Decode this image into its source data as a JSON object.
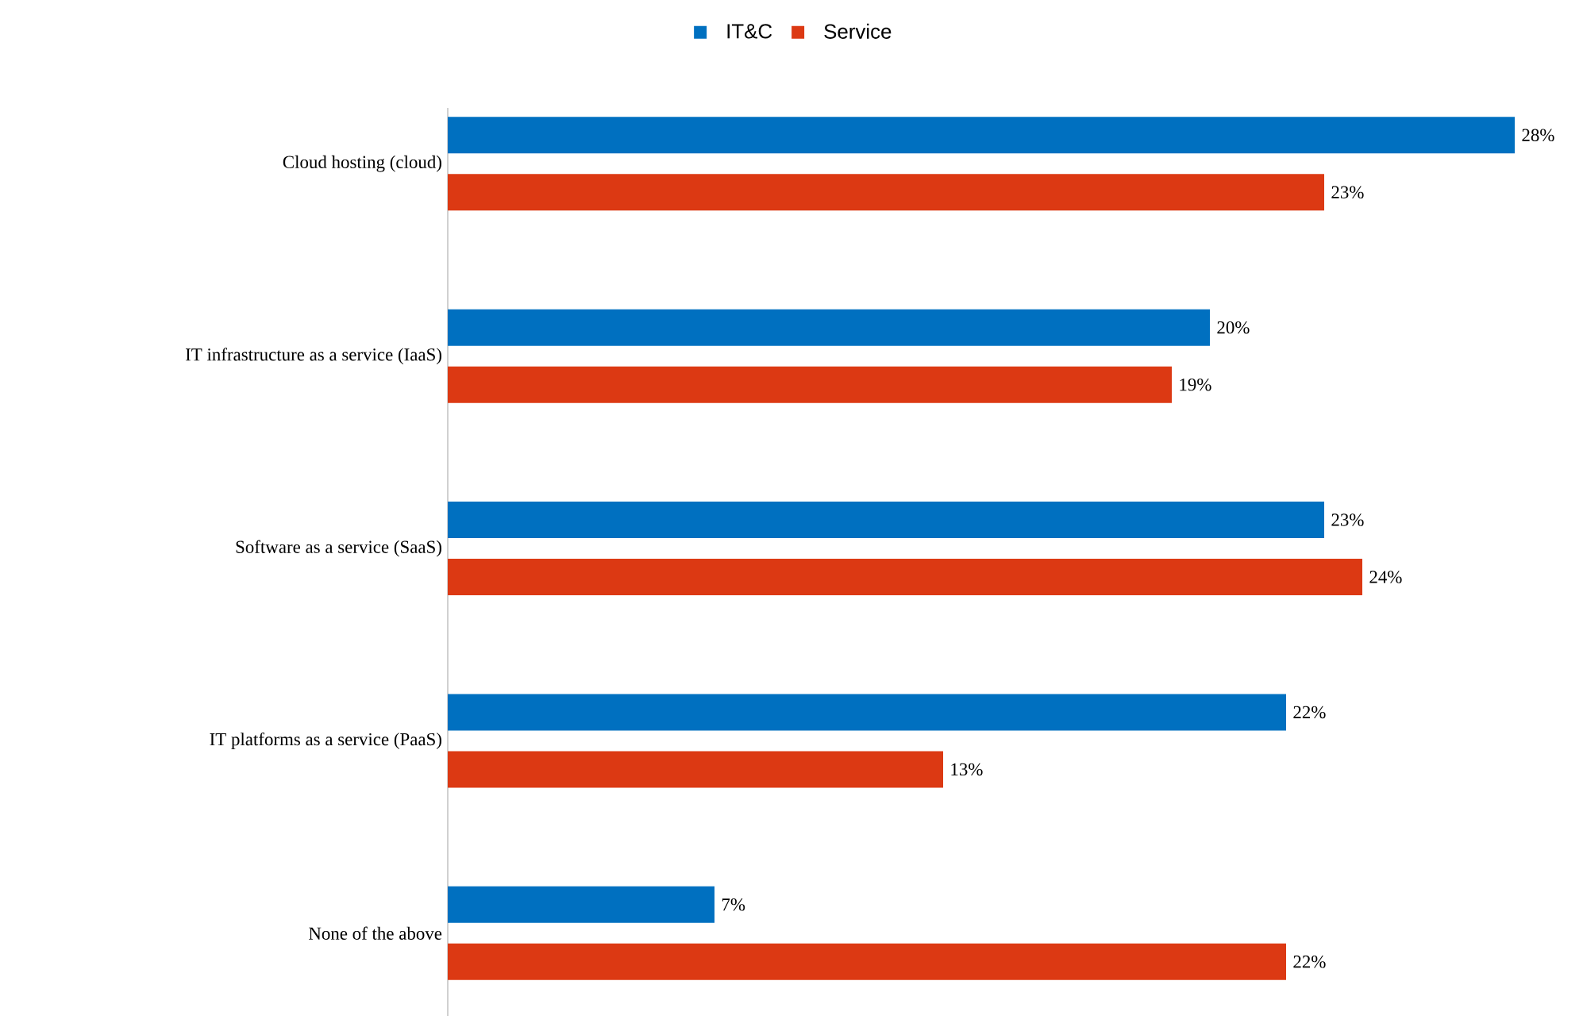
{
  "chart_data": {
    "type": "bar",
    "orientation": "horizontal",
    "categories": [
      "Cloud hosting (cloud)",
      "IT infrastructure as a service (IaaS)",
      "Software as a service (SaaS)",
      "IT platforms as a service (PaaS)",
      "None of the above"
    ],
    "series": [
      {
        "name": "IT&C",
        "color": "#0070c0",
        "values": [
          28,
          20,
          23,
          22,
          7
        ],
        "value_labels": [
          "28%",
          "20%",
          "23%",
          "22%",
          "7%"
        ]
      },
      {
        "name": "Service",
        "color": "#dc3913",
        "values": [
          23,
          19,
          24,
          13,
          22
        ],
        "value_labels": [
          "23%",
          "19%",
          "24%",
          "13%",
          "22%"
        ]
      }
    ],
    "legend": "top"
  }
}
